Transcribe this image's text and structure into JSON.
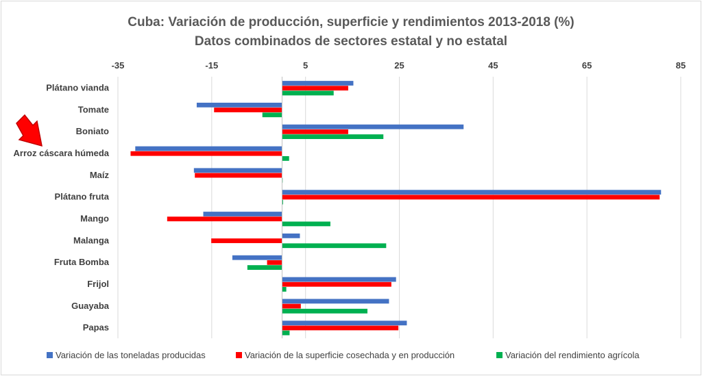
{
  "chart_data": {
    "type": "bar",
    "orientation": "horizontal",
    "title": "Cuba: Variación de producción, superficie y rendimientos 2013-2018 (%)",
    "subtitle": "Datos combinados de sectores estatal y no estatal",
    "xlim": [
      -35,
      85
    ],
    "xticks": [
      "-35",
      "-15",
      "5",
      "25",
      "45",
      "65",
      "85"
    ],
    "grid": true,
    "legend_position": "bottom",
    "categories": [
      "Plátano vianda",
      "Tomate",
      "Boniato",
      "Arroz cáscara húmeda",
      "Maíz",
      "Plátano fruta",
      "Mango",
      "Malanga",
      "Fruta Bomba",
      "Frijol",
      "Guayaba",
      "Papas"
    ],
    "series": [
      {
        "name": "Variación de las toneladas producidas",
        "color": "#4472c4",
        "values": [
          15.2,
          -18.2,
          38.7,
          -31.3,
          -18.8,
          80.8,
          -16.8,
          3.8,
          -10.6,
          24.3,
          22.8,
          26.6
        ]
      },
      {
        "name": "Variación de la superficie cosechada y en producción",
        "color": "#ff0000",
        "values": [
          14.1,
          -14.5,
          14.1,
          -32.3,
          -18.6,
          80.5,
          -24.5,
          -15.1,
          -3.2,
          23.3,
          4.0,
          24.8
        ]
      },
      {
        "name": "Variación del rendimiento agrícola",
        "color": "#00b050",
        "values": [
          11.0,
          -4.2,
          21.6,
          1.5,
          0.0,
          0.2,
          10.3,
          22.2,
          -7.4,
          0.9,
          18.2,
          1.6
        ]
      }
    ],
    "annotation": {
      "type": "arrow",
      "color": "#ff0000",
      "points_to": "Arroz cáscara húmeda"
    }
  }
}
